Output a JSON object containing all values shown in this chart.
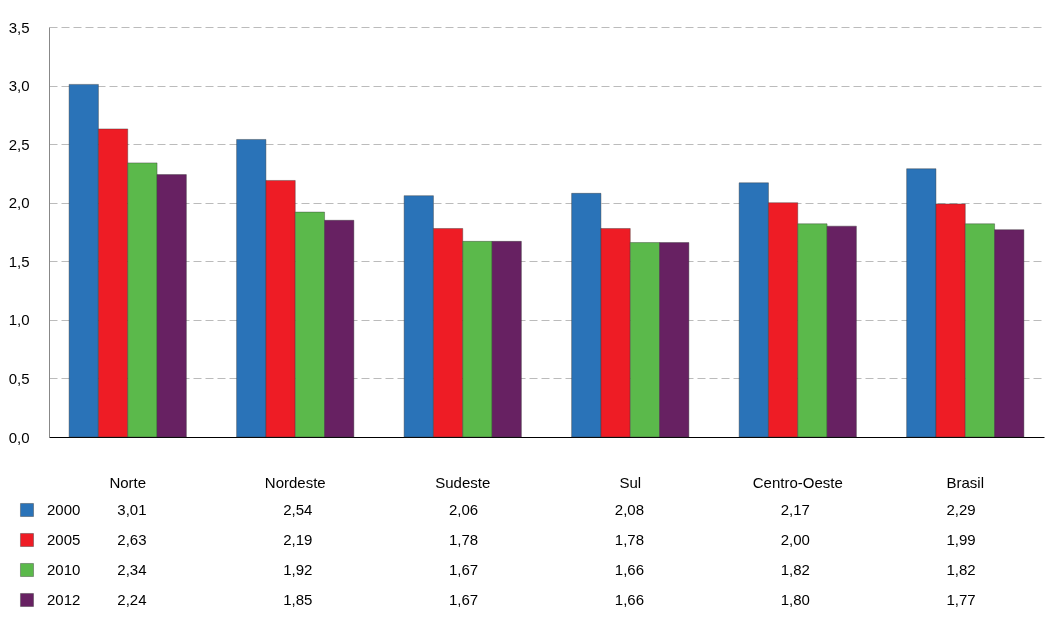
{
  "chart_data": {
    "type": "bar",
    "categories": [
      "Norte",
      "Nordeste",
      "Sudeste",
      "Sul",
      "Centro-Oeste",
      "Brasil"
    ],
    "series": [
      {
        "name": "2000",
        "color": "#2a73b8",
        "values": [
          3.01,
          2.54,
          2.06,
          2.08,
          2.17,
          2.29
        ],
        "value_labels": [
          "3,01",
          "2,54",
          "2,06",
          "2,08",
          "2,17",
          "2,29"
        ]
      },
      {
        "name": "2005",
        "color": "#ee1c25",
        "values": [
          2.63,
          2.19,
          1.78,
          1.78,
          2.0,
          1.99
        ],
        "value_labels": [
          "2,63",
          "2,19",
          "1,78",
          "1,78",
          "2,00",
          "1,99"
        ]
      },
      {
        "name": "2010",
        "color": "#5bb94b",
        "values": [
          2.34,
          1.92,
          1.67,
          1.66,
          1.82,
          1.82
        ],
        "value_labels": [
          "2,34",
          "1,92",
          "1,67",
          "1,66",
          "1,82",
          "1,82"
        ]
      },
      {
        "name": "2012",
        "color": "#672162",
        "values": [
          2.24,
          1.85,
          1.67,
          1.66,
          1.8,
          1.77
        ],
        "value_labels": [
          "2,24",
          "1,85",
          "1,67",
          "1,66",
          "1,80",
          "1,77"
        ]
      }
    ],
    "ylim": [
      0,
      3.5
    ],
    "yticks": [
      {
        "value": 0,
        "label": "0,0"
      },
      {
        "value": 0.5,
        "label": "0,5"
      },
      {
        "value": 1,
        "label": "1,0"
      },
      {
        "value": 1.5,
        "label": "1,5"
      },
      {
        "value": 2,
        "label": "2,0"
      },
      {
        "value": 2.5,
        "label": "2,5"
      },
      {
        "value": 3,
        "label": "3,0"
      },
      {
        "value": 3.5,
        "label": "3,5"
      }
    ],
    "grid": "y",
    "legend": "bottom"
  }
}
